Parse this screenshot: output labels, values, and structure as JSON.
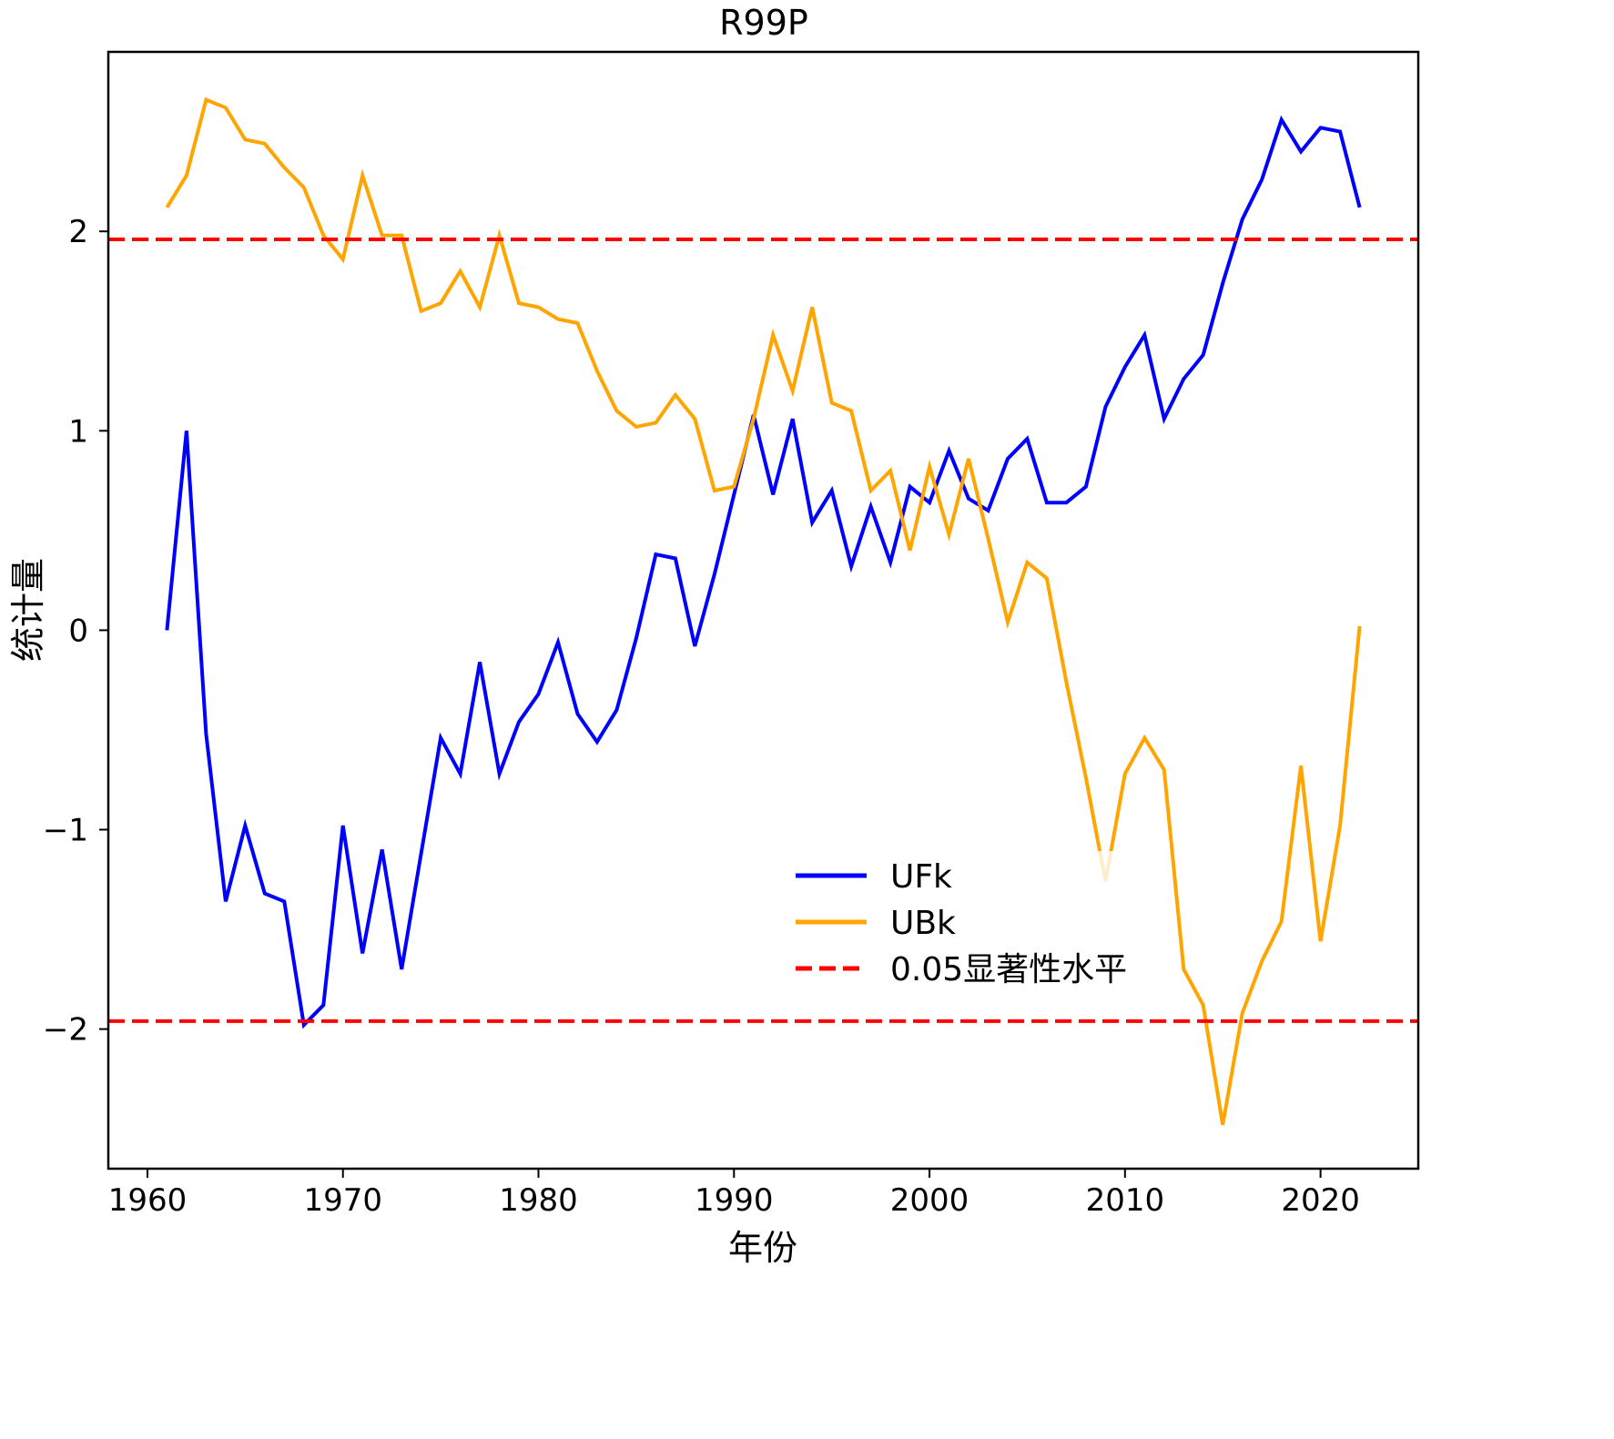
{
  "chart_data": {
    "type": "line",
    "title": "R99P",
    "xlabel": "年份",
    "ylabel": "统计量",
    "xlim": [
      1958,
      2025
    ],
    "ylim": [
      -2.7,
      2.9
    ],
    "x_ticks": [
      1960,
      1970,
      1980,
      1990,
      2000,
      2010,
      2020
    ],
    "y_ticks": [
      -2,
      -1,
      0,
      1,
      2
    ],
    "y_tick_labels": [
      "−2",
      "−1",
      "0",
      "1",
      "2"
    ],
    "grid": false,
    "legend_position": "lower-center-right",
    "x": [
      1961,
      1962,
      1963,
      1964,
      1965,
      1966,
      1967,
      1968,
      1969,
      1970,
      1971,
      1972,
      1973,
      1974,
      1975,
      1976,
      1977,
      1978,
      1979,
      1980,
      1981,
      1982,
      1983,
      1984,
      1985,
      1986,
      1987,
      1988,
      1989,
      1990,
      1991,
      1992,
      1993,
      1994,
      1995,
      1996,
      1997,
      1998,
      1999,
      2000,
      2001,
      2002,
      2003,
      2004,
      2005,
      2006,
      2007,
      2008,
      2009,
      2010,
      2011,
      2012,
      2013,
      2014,
      2015,
      2016,
      2017,
      2018,
      2019,
      2020,
      2021,
      2022
    ],
    "series": [
      {
        "name": "UFk",
        "color": "#0000ff",
        "style": "solid",
        "values": [
          0.0,
          1.0,
          -0.52,
          -1.36,
          -0.98,
          -1.32,
          -1.36,
          -1.98,
          -1.88,
          -0.98,
          -1.62,
          -1.1,
          -1.7,
          -1.12,
          -0.54,
          -0.72,
          -0.16,
          -0.72,
          -0.46,
          -0.32,
          -0.06,
          -0.42,
          -0.56,
          -0.4,
          -0.04,
          0.38,
          0.36,
          -0.08,
          0.28,
          0.68,
          1.08,
          0.68,
          1.06,
          0.54,
          0.7,
          0.32,
          0.62,
          0.34,
          0.72,
          0.64,
          0.9,
          0.66,
          0.6,
          0.86,
          0.96,
          0.64,
          0.64,
          0.72,
          1.12,
          1.32,
          1.48,
          1.06,
          1.26,
          1.38,
          1.74,
          2.06,
          2.26,
          2.56,
          2.4,
          2.52,
          2.5,
          2.12
        ]
      },
      {
        "name": "UBk",
        "color": "#ffa500",
        "style": "solid",
        "values": [
          2.12,
          2.28,
          2.66,
          2.62,
          2.46,
          2.44,
          2.32,
          2.22,
          1.98,
          1.86,
          2.28,
          1.98,
          1.98,
          1.6,
          1.64,
          1.8,
          1.62,
          1.98,
          1.64,
          1.62,
          1.56,
          1.54,
          1.3,
          1.1,
          1.02,
          1.04,
          1.18,
          1.06,
          0.7,
          0.72,
          1.06,
          1.48,
          1.2,
          1.62,
          1.14,
          1.1,
          0.7,
          0.8,
          0.4,
          0.82,
          0.48,
          0.86,
          0.46,
          0.04,
          0.34,
          0.26,
          -0.26,
          -0.74,
          -1.26,
          -0.72,
          -0.54,
          -0.7,
          -1.7,
          -1.88,
          -2.48,
          -1.92,
          -1.66,
          -1.46,
          -0.68,
          -1.56,
          -0.98,
          0.02
        ]
      }
    ],
    "reference_lines": {
      "name": "0.05显著性水平",
      "color": "#ff0000",
      "style": "dashed",
      "values": [
        1.96,
        -1.96
      ]
    }
  }
}
